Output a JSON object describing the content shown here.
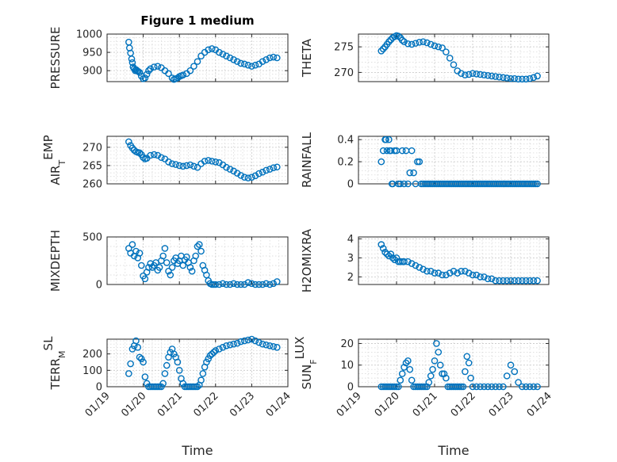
{
  "figure_title": "Figure 1 medium",
  "colors": {
    "marker": "#0072bd",
    "axis": "#262626",
    "grid": "#d5d5d5"
  },
  "chart_data": [
    {
      "type": "scatter",
      "id": "pressure",
      "ylabel": "PRESSURE",
      "title": "Figure 1 medium",
      "xlim": [
        19,
        24
      ],
      "ylim": [
        870,
        1000
      ],
      "yticks": [
        900,
        950,
        1000
      ],
      "show_xticks": false,
      "x": [
        19.6,
        19.62,
        19.65,
        19.68,
        19.7,
        19.72,
        19.75,
        19.78,
        19.8,
        19.83,
        19.86,
        19.9,
        19.95,
        20.0,
        20.05,
        20.1,
        20.15,
        20.2,
        20.3,
        20.4,
        20.5,
        20.6,
        20.7,
        20.8,
        20.85,
        20.9,
        20.95,
        21.0,
        21.05,
        21.1,
        21.2,
        21.3,
        21.4,
        21.5,
        21.6,
        21.7,
        21.8,
        21.9,
        22.0,
        22.1,
        22.2,
        22.3,
        22.4,
        22.5,
        22.6,
        22.7,
        22.8,
        22.9,
        23.0,
        23.1,
        23.2,
        23.3,
        23.4,
        23.5,
        23.6,
        23.7
      ],
      "y": [
        978,
        962,
        948,
        932,
        922,
        910,
        905,
        900,
        903,
        900,
        898,
        895,
        885,
        878,
        880,
        890,
        900,
        905,
        910,
        912,
        908,
        900,
        892,
        880,
        876,
        878,
        880,
        884,
        886,
        888,
        892,
        900,
        912,
        925,
        940,
        950,
        957,
        960,
        957,
        950,
        945,
        940,
        935,
        930,
        925,
        920,
        918,
        915,
        912,
        915,
        918,
        925,
        930,
        935,
        937,
        935
      ]
    },
    {
      "type": "scatter",
      "id": "theta",
      "ylabel": "THETA",
      "xlim": [
        19,
        24
      ],
      "ylim": [
        268.2,
        277.5
      ],
      "yticks": [
        270,
        275
      ],
      "show_xticks": false,
      "x": [
        19.6,
        19.65,
        19.7,
        19.75,
        19.8,
        19.85,
        19.9,
        19.95,
        20.0,
        20.05,
        20.1,
        20.15,
        20.2,
        20.3,
        20.4,
        20.5,
        20.6,
        20.7,
        20.8,
        20.9,
        21.0,
        21.1,
        21.2,
        21.3,
        21.4,
        21.5,
        21.6,
        21.7,
        21.8,
        21.9,
        22.0,
        22.1,
        22.2,
        22.3,
        22.4,
        22.5,
        22.6,
        22.7,
        22.8,
        22.9,
        23.0,
        23.1,
        23.2,
        23.3,
        23.4,
        23.5,
        23.6,
        23.7
      ],
      "y": [
        274.2,
        274.6,
        275.0,
        275.5,
        276.0,
        276.4,
        276.8,
        277.0,
        277.2,
        277.1,
        276.8,
        276.3,
        276.0,
        275.6,
        275.5,
        275.7,
        275.9,
        276.0,
        275.8,
        275.5,
        275.2,
        275.0,
        274.8,
        274.0,
        272.8,
        271.5,
        270.3,
        269.8,
        269.5,
        269.6,
        269.8,
        269.7,
        269.6,
        269.5,
        269.4,
        269.3,
        269.2,
        269.1,
        269.0,
        268.9,
        268.8,
        268.8,
        268.7,
        268.7,
        268.7,
        268.8,
        269.0,
        269.3
      ]
    },
    {
      "type": "scatter",
      "id": "air_temp",
      "ylabel": "AIR",
      "ylabel_sub": "T",
      "ylabel_tail": "EMP",
      "xlim": [
        19,
        24
      ],
      "ylim": [
        260,
        273
      ],
      "yticks": [
        260,
        265,
        270
      ],
      "show_xticks": false,
      "x": [
        19.6,
        19.65,
        19.7,
        19.75,
        19.8,
        19.85,
        19.9,
        19.95,
        20.0,
        20.05,
        20.1,
        20.2,
        20.3,
        20.4,
        20.5,
        20.6,
        20.7,
        20.8,
        20.9,
        21.0,
        21.1,
        21.2,
        21.3,
        21.4,
        21.5,
        21.6,
        21.7,
        21.8,
        21.9,
        22.0,
        22.1,
        22.2,
        22.3,
        22.4,
        22.5,
        22.6,
        22.7,
        22.8,
        22.9,
        23.0,
        23.1,
        23.2,
        23.3,
        23.4,
        23.5,
        23.6,
        23.7
      ],
      "y": [
        271.5,
        270.5,
        269.8,
        269.2,
        268.8,
        268.6,
        268.5,
        268.0,
        267.2,
        266.8,
        267.0,
        267.8,
        268.0,
        267.8,
        267.2,
        266.8,
        266.0,
        265.5,
        265.3,
        265.0,
        264.8,
        265.0,
        265.2,
        264.8,
        264.5,
        265.5,
        266.2,
        266.4,
        266.2,
        266.0,
        265.8,
        265.2,
        264.5,
        264.0,
        263.5,
        262.9,
        262.3,
        261.8,
        261.6,
        261.8,
        262.2,
        262.8,
        263.2,
        263.7,
        264.0,
        264.4,
        264.6
      ]
    },
    {
      "type": "scatter",
      "id": "rainfall",
      "ylabel": "RAINFALL",
      "xlim": [
        19,
        24
      ],
      "ylim": [
        0,
        0.43
      ],
      "yticks": [
        0,
        0.2,
        0.4
      ],
      "ytick_labels": [
        "0",
        "0.2",
        "0.4"
      ],
      "show_xticks": false,
      "x": [
        19.6,
        19.65,
        19.7,
        19.75,
        19.8,
        19.85,
        19.88,
        19.9,
        19.95,
        20.0,
        20.05,
        20.1,
        20.15,
        20.2,
        20.25,
        20.3,
        20.35,
        20.4,
        20.45,
        20.5,
        20.55,
        20.6,
        20.65,
        20.7,
        20.75,
        20.8,
        20.85,
        20.9,
        20.95,
        21.0,
        21.05,
        21.1,
        21.15,
        21.2,
        21.25,
        21.3,
        21.35,
        21.4,
        21.45,
        21.5,
        21.55,
        21.6,
        21.65,
        21.7,
        21.75,
        21.8,
        21.85,
        21.9,
        21.95,
        22.0,
        22.05,
        22.1,
        22.15,
        22.2,
        22.25,
        22.3,
        22.35,
        22.4,
        22.45,
        22.5,
        22.55,
        22.6,
        22.65,
        22.7,
        22.75,
        22.8,
        22.85,
        22.9,
        22.95,
        23.0,
        23.05,
        23.1,
        23.15,
        23.2,
        23.25,
        23.3,
        23.35,
        23.4,
        23.45,
        23.5,
        23.55,
        23.6,
        23.65,
        23.7,
        19.72,
        19.82
      ],
      "y": [
        0.2,
        0.3,
        0.4,
        0.3,
        0.4,
        0.3,
        0,
        0,
        0.3,
        0.3,
        0,
        0,
        0.3,
        0,
        0.3,
        0,
        0.1,
        0.3,
        0.1,
        0,
        0.2,
        0.2,
        0,
        0,
        0,
        0,
        0,
        0,
        0,
        0,
        0,
        0,
        0,
        0,
        0,
        0,
        0,
        0,
        0,
        0,
        0,
        0,
        0,
        0,
        0,
        0,
        0,
        0,
        0,
        0,
        0,
        0,
        0,
        0,
        0,
        0,
        0,
        0,
        0,
        0,
        0,
        0,
        0,
        0,
        0,
        0,
        0,
        0,
        0,
        0,
        0,
        0,
        0,
        0,
        0,
        0,
        0,
        0,
        0,
        0,
        0,
        0,
        0,
        0,
        0.4,
        0.3
      ]
    },
    {
      "type": "scatter",
      "id": "mixdepth",
      "ylabel": "MIXDEPTH",
      "xlim": [
        19,
        24
      ],
      "ylim": [
        0,
        500
      ],
      "yticks": [
        0,
        500
      ],
      "show_xticks": false,
      "x": [
        19.6,
        19.65,
        19.7,
        19.75,
        19.8,
        19.85,
        19.9,
        19.95,
        20.0,
        20.05,
        20.1,
        20.15,
        20.2,
        20.25,
        20.3,
        20.35,
        20.4,
        20.45,
        20.5,
        20.55,
        20.6,
        20.65,
        20.7,
        20.75,
        20.8,
        20.85,
        20.9,
        20.95,
        21.0,
        21.05,
        21.1,
        21.15,
        21.2,
        21.25,
        21.3,
        21.35,
        21.4,
        21.45,
        21.5,
        21.55,
        21.6,
        21.65,
        21.7,
        21.75,
        21.8,
        21.85,
        21.9,
        21.95,
        22.0,
        22.1,
        22.2,
        22.3,
        22.4,
        22.5,
        22.6,
        22.7,
        22.8,
        22.9,
        23.0,
        23.1,
        23.2,
        23.3,
        23.4,
        23.5,
        23.6,
        23.7
      ],
      "y": [
        380,
        330,
        420,
        300,
        350,
        280,
        330,
        200,
        90,
        60,
        130,
        180,
        220,
        180,
        200,
        230,
        150,
        180,
        250,
        300,
        380,
        230,
        140,
        100,
        180,
        250,
        280,
        220,
        250,
        300,
        200,
        260,
        290,
        230,
        180,
        140,
        250,
        300,
        400,
        420,
        350,
        200,
        150,
        100,
        40,
        10,
        0,
        0,
        0,
        0,
        10,
        0,
        0,
        10,
        0,
        0,
        0,
        20,
        10,
        0,
        0,
        0,
        10,
        0,
        10,
        30
      ]
    },
    {
      "type": "scatter",
      "id": "h2omixra",
      "ylabel": "H2OMIXRA",
      "xlim": [
        19,
        24
      ],
      "ylim": [
        1.6,
        4.1
      ],
      "yticks": [
        2,
        3,
        4
      ],
      "show_xticks": false,
      "x": [
        19.6,
        19.65,
        19.7,
        19.75,
        19.8,
        19.85,
        19.9,
        19.95,
        20.0,
        20.05,
        20.1,
        20.15,
        20.2,
        20.3,
        20.4,
        20.5,
        20.6,
        20.7,
        20.8,
        20.9,
        21.0,
        21.1,
        21.2,
        21.3,
        21.4,
        21.5,
        21.6,
        21.7,
        21.8,
        21.9,
        22.0,
        22.1,
        22.2,
        22.3,
        22.4,
        22.5,
        22.6,
        22.7,
        22.8,
        22.9,
        23.0,
        23.1,
        23.2,
        23.3,
        23.4,
        23.5,
        23.6,
        23.7
      ],
      "y": [
        3.7,
        3.5,
        3.3,
        3.2,
        3.1,
        3.2,
        3.0,
        2.9,
        3.0,
        2.8,
        2.8,
        2.8,
        2.8,
        2.8,
        2.7,
        2.6,
        2.5,
        2.4,
        2.3,
        2.3,
        2.2,
        2.2,
        2.1,
        2.1,
        2.2,
        2.3,
        2.2,
        2.3,
        2.3,
        2.2,
        2.1,
        2.1,
        2.0,
        2.0,
        1.9,
        1.9,
        1.8,
        1.8,
        1.8,
        1.8,
        1.8,
        1.8,
        1.8,
        1.8,
        1.8,
        1.8,
        1.8,
        1.8
      ]
    },
    {
      "type": "scatter",
      "id": "terr_msl",
      "ylabel": "TERR",
      "ylabel_sub": "M",
      "ylabel_tail": "SL",
      "xlim": [
        19,
        24
      ],
      "ylim": [
        0,
        290
      ],
      "yticks": [
        0,
        100,
        200
      ],
      "show_xticks": true,
      "xticks": [
        19,
        20,
        21,
        22,
        23,
        24
      ],
      "xtick_labels": [
        "01/19",
        "01/20",
        "01/21",
        "01/22",
        "01/23",
        "01/24"
      ],
      "xlabel": "Time",
      "x": [
        19.6,
        19.65,
        19.7,
        19.75,
        19.8,
        19.85,
        19.9,
        19.95,
        20.0,
        20.05,
        20.1,
        20.15,
        20.2,
        20.25,
        20.3,
        20.35,
        20.4,
        20.45,
        20.5,
        20.55,
        20.6,
        20.65,
        20.7,
        20.75,
        20.8,
        20.85,
        20.9,
        20.95,
        21.0,
        21.05,
        21.1,
        21.15,
        21.2,
        21.25,
        21.3,
        21.35,
        21.4,
        21.45,
        21.5,
        21.55,
        21.6,
        21.65,
        21.7,
        21.75,
        21.8,
        21.85,
        21.9,
        21.95,
        22.0,
        22.1,
        22.2,
        22.3,
        22.4,
        22.5,
        22.6,
        22.7,
        22.8,
        22.9,
        23.0,
        23.1,
        23.2,
        23.3,
        23.4,
        23.5,
        23.6,
        23.7
      ],
      "y": [
        80,
        140,
        230,
        250,
        280,
        240,
        180,
        170,
        150,
        60,
        20,
        0,
        0,
        0,
        0,
        0,
        0,
        0,
        0,
        20,
        80,
        130,
        180,
        210,
        230,
        200,
        180,
        150,
        100,
        50,
        20,
        0,
        0,
        0,
        0,
        0,
        0,
        0,
        0,
        10,
        40,
        80,
        120,
        150,
        170,
        190,
        200,
        210,
        220,
        230,
        240,
        250,
        255,
        260,
        265,
        275,
        280,
        285,
        290,
        280,
        270,
        260,
        255,
        250,
        245,
        240
      ]
    },
    {
      "type": "scatter",
      "id": "sun_flux",
      "ylabel": "SUN",
      "ylabel_sub": "F",
      "ylabel_tail": "LUX",
      "xlim": [
        19,
        24
      ],
      "ylim": [
        0,
        22
      ],
      "yticks": [
        0,
        10,
        20
      ],
      "show_xticks": true,
      "xticks": [
        19,
        20,
        21,
        22,
        23,
        24
      ],
      "xtick_labels": [
        "01/19",
        "01/20",
        "01/21",
        "01/22",
        "01/23",
        "01/24"
      ],
      "xlabel": "Time",
      "x": [
        19.6,
        19.65,
        19.7,
        19.75,
        19.8,
        19.85,
        19.9,
        19.95,
        20.0,
        20.05,
        20.1,
        20.15,
        20.2,
        20.25,
        20.3,
        20.35,
        20.4,
        20.45,
        20.5,
        20.55,
        20.6,
        20.65,
        20.7,
        20.75,
        20.8,
        20.85,
        20.9,
        20.95,
        21.0,
        21.05,
        21.1,
        21.15,
        21.2,
        21.25,
        21.3,
        21.35,
        21.4,
        21.45,
        21.5,
        21.55,
        21.6,
        21.65,
        21.7,
        21.75,
        21.8,
        21.85,
        21.9,
        21.95,
        22.0,
        22.1,
        22.2,
        22.3,
        22.4,
        22.5,
        22.6,
        22.7,
        22.8,
        22.9,
        23.0,
        23.1,
        23.2,
        23.3,
        23.4,
        23.5,
        23.6,
        23.7
      ],
      "y": [
        0,
        0,
        0,
        0,
        0,
        0,
        0,
        0,
        0,
        0,
        3,
        6,
        9,
        11,
        12,
        8,
        3,
        0,
        0,
        0,
        0,
        0,
        0,
        0,
        0,
        2,
        5,
        8,
        12,
        20,
        16,
        10,
        6,
        6,
        4,
        0,
        0,
        0,
        0,
        0,
        0,
        0,
        0,
        0,
        7,
        14,
        11,
        4,
        0,
        0,
        0,
        0,
        0,
        0,
        0,
        0,
        0,
        5,
        10,
        7,
        2,
        0,
        0,
        0,
        0,
        0
      ]
    }
  ]
}
